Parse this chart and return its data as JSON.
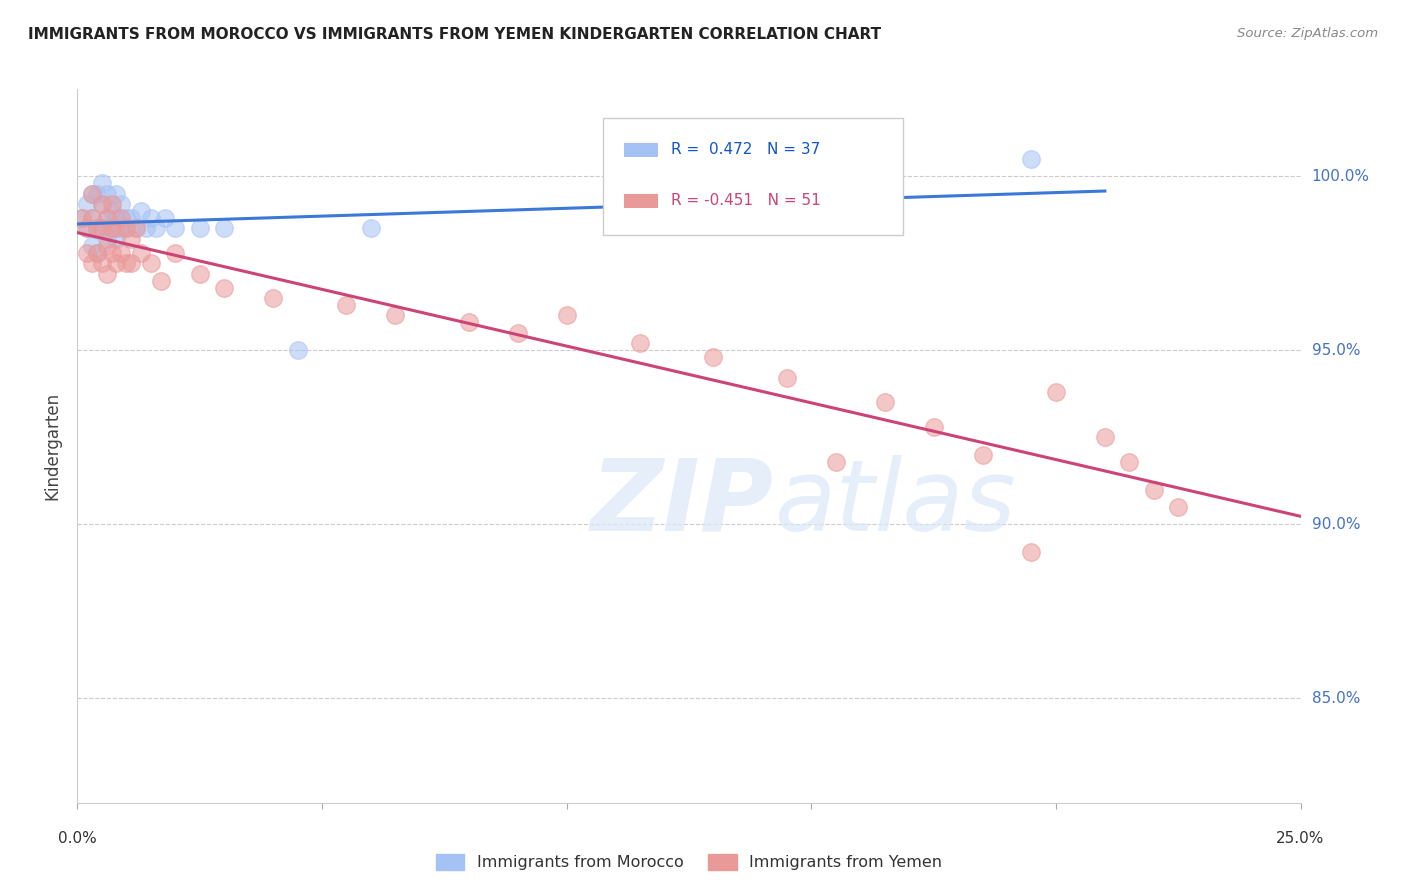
{
  "title": "IMMIGRANTS FROM MOROCCO VS IMMIGRANTS FROM YEMEN KINDERGARTEN CORRELATION CHART",
  "source": "Source: ZipAtlas.com",
  "ylabel": "Kindergarten",
  "y_ticks": [
    0.85,
    0.9,
    0.95,
    1.0
  ],
  "y_tick_labels": [
    "85.0%",
    "90.0%",
    "95.0%",
    "100.0%"
  ],
  "xlim": [
    0.0,
    0.25
  ],
  "ylim": [
    0.82,
    1.025
  ],
  "morocco_R": 0.472,
  "morocco_N": 37,
  "yemen_R": -0.451,
  "yemen_N": 51,
  "morocco_color": "#a4c2f4",
  "yemen_color": "#ea9999",
  "morocco_line_color": "#3c78d8",
  "yemen_line_color": "#cc4477",
  "morocco_x": [
    0.001,
    0.002,
    0.002,
    0.003,
    0.003,
    0.003,
    0.004,
    0.004,
    0.004,
    0.005,
    0.005,
    0.005,
    0.006,
    0.006,
    0.006,
    0.007,
    0.007,
    0.008,
    0.008,
    0.008,
    0.009,
    0.009,
    0.01,
    0.01,
    0.011,
    0.012,
    0.013,
    0.014,
    0.015,
    0.016,
    0.018,
    0.02,
    0.025,
    0.03,
    0.045,
    0.06,
    0.195
  ],
  "morocco_y": [
    0.988,
    0.992,
    0.985,
    0.995,
    0.988,
    0.98,
    0.995,
    0.985,
    0.978,
    0.992,
    0.985,
    0.998,
    0.988,
    0.982,
    0.995,
    0.985,
    0.99,
    0.988,
    0.982,
    0.995,
    0.985,
    0.992,
    0.988,
    0.985,
    0.988,
    0.985,
    0.99,
    0.985,
    0.988,
    0.985,
    0.988,
    0.985,
    0.985,
    0.985,
    0.95,
    0.985,
    1.005
  ],
  "yemen_x": [
    0.001,
    0.002,
    0.002,
    0.003,
    0.003,
    0.003,
    0.004,
    0.004,
    0.005,
    0.005,
    0.005,
    0.006,
    0.006,
    0.006,
    0.007,
    0.007,
    0.007,
    0.008,
    0.008,
    0.009,
    0.009,
    0.01,
    0.01,
    0.011,
    0.011,
    0.012,
    0.013,
    0.015,
    0.017,
    0.02,
    0.025,
    0.03,
    0.04,
    0.055,
    0.065,
    0.08,
    0.09,
    0.1,
    0.115,
    0.13,
    0.145,
    0.155,
    0.165,
    0.175,
    0.185,
    0.195,
    0.2,
    0.21,
    0.215,
    0.22,
    0.225
  ],
  "yemen_y": [
    0.988,
    0.985,
    0.978,
    0.995,
    0.988,
    0.975,
    0.985,
    0.978,
    0.992,
    0.985,
    0.975,
    0.988,
    0.98,
    0.972,
    0.985,
    0.978,
    0.992,
    0.985,
    0.975,
    0.988,
    0.978,
    0.985,
    0.975,
    0.982,
    0.975,
    0.985,
    0.978,
    0.975,
    0.97,
    0.978,
    0.972,
    0.968,
    0.965,
    0.963,
    0.96,
    0.958,
    0.955,
    0.96,
    0.952,
    0.948,
    0.942,
    0.918,
    0.935,
    0.928,
    0.92,
    0.892,
    0.938,
    0.925,
    0.918,
    0.91,
    0.905
  ],
  "legend_morocco_text": "R =  0.472   N = 37",
  "legend_yemen_text": "R = -0.451   N = 51",
  "legend_label_morocco": "Immigrants from Morocco",
  "legend_label_yemen": "Immigrants from Yemen"
}
